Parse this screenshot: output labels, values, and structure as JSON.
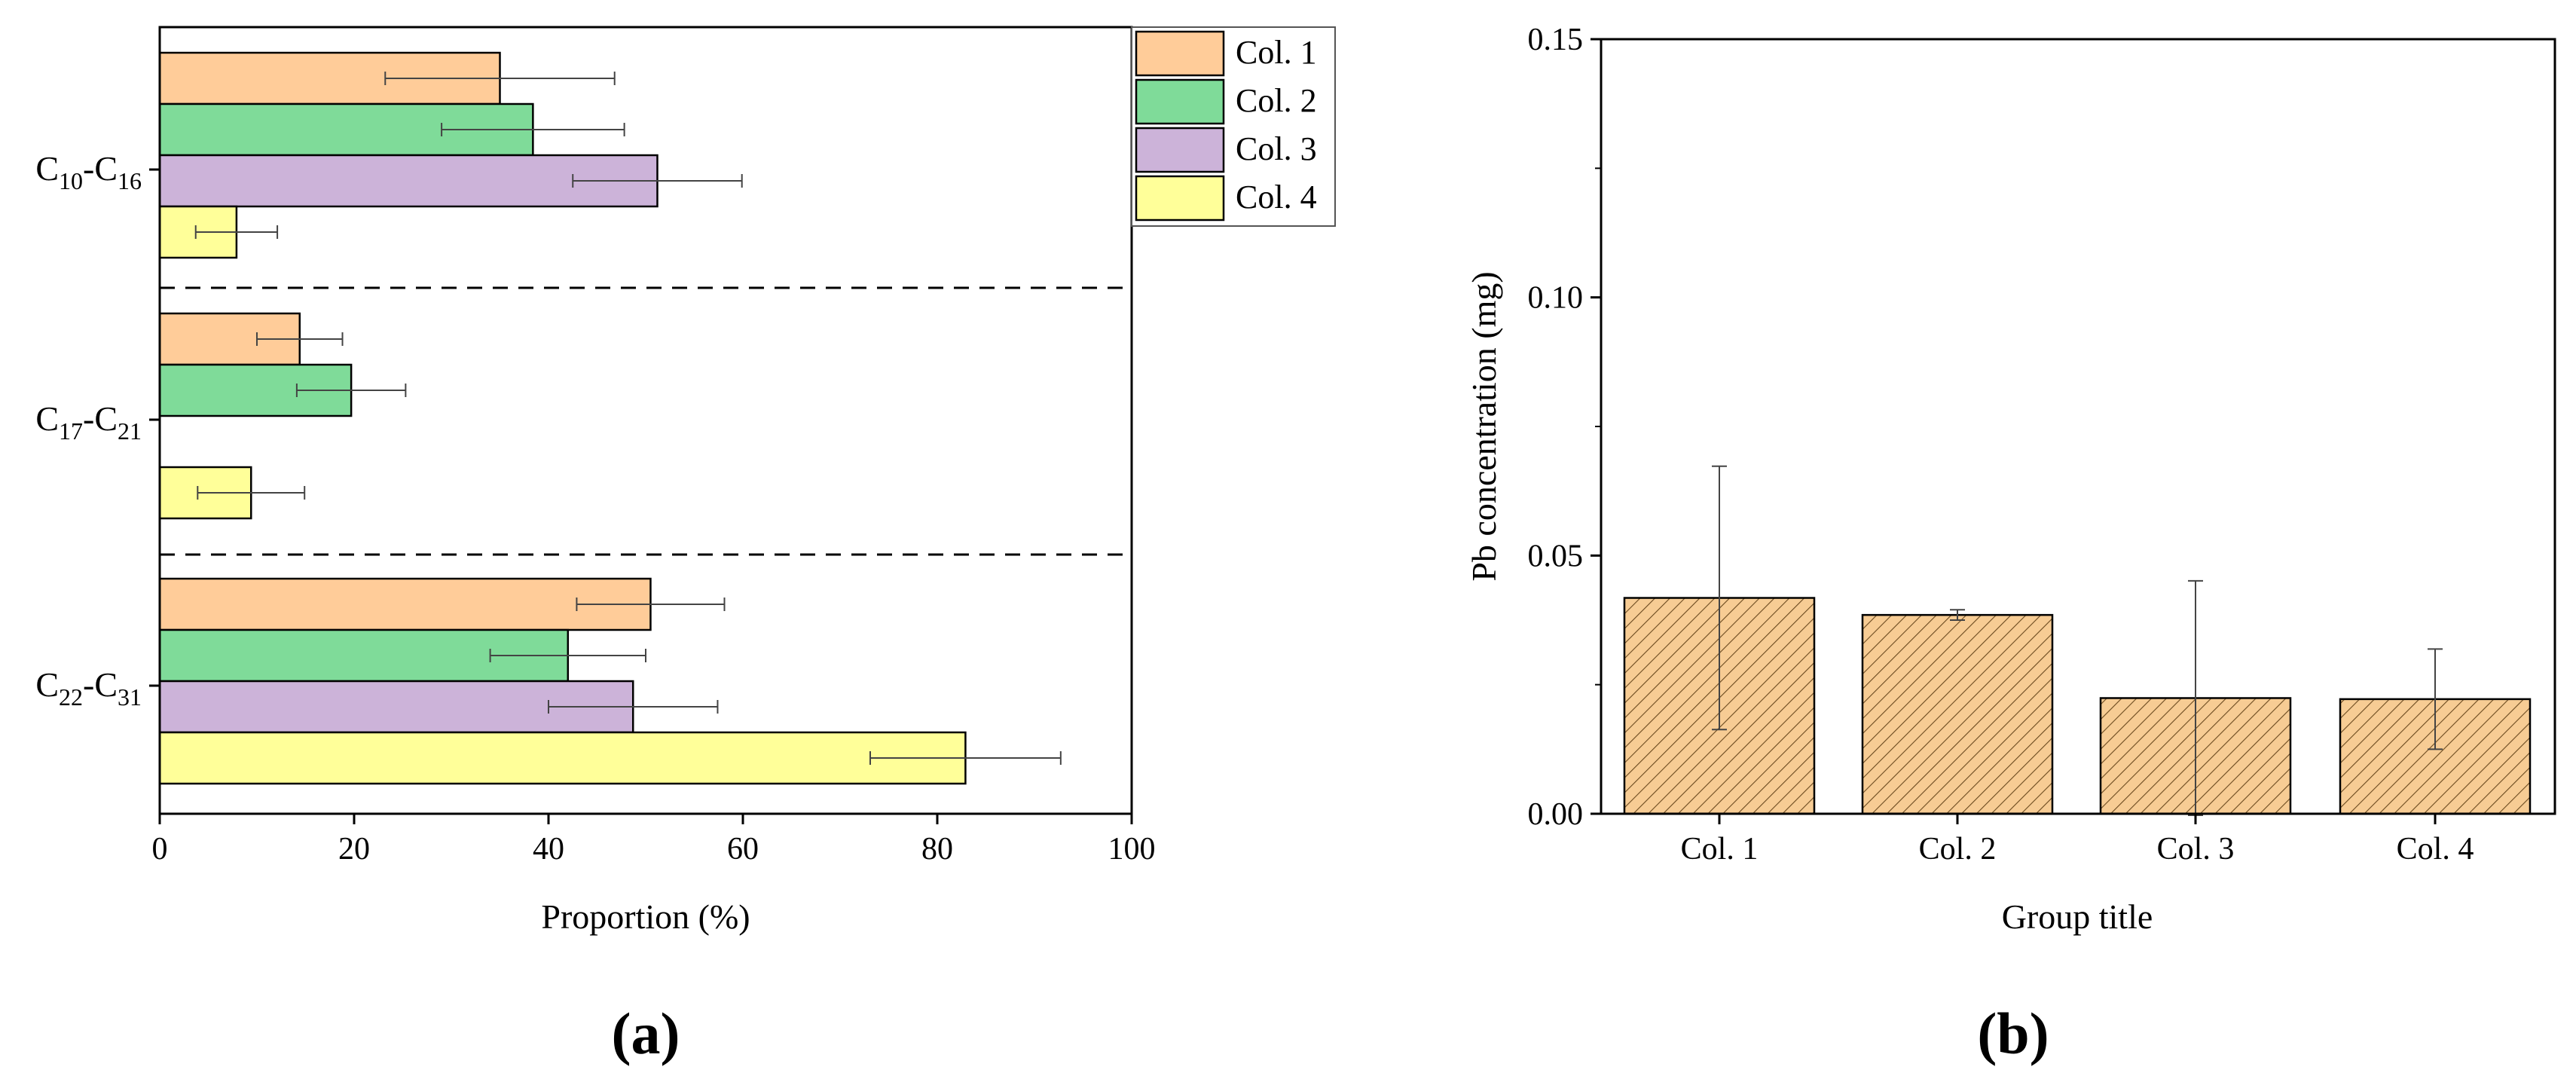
{
  "chart_data": [
    {
      "panel_label": "(a)",
      "type": "bar",
      "orientation": "horizontal",
      "categories": [
        {
          "base": "C",
          "sub1": "10",
          "mid": "-C",
          "sub2": "16"
        },
        {
          "base": "C",
          "sub1": "17",
          "mid": "-C",
          "sub2": "21"
        },
        {
          "base": "C",
          "sub1": "22",
          "mid": "-C",
          "sub2": "31"
        }
      ],
      "series": [
        {
          "name": "Col. 1",
          "color": "#FFCC99",
          "values": [
            35.0,
            14.4,
            50.5
          ],
          "errors": [
            11.8,
            4.4,
            7.6
          ]
        },
        {
          "name": "Col. 2",
          "color": "#7FDB99",
          "values": [
            38.4,
            19.7,
            42.0
          ],
          "errors": [
            9.4,
            5.6,
            8.0
          ]
        },
        {
          "name": "Col. 3",
          "color": "#CCB3D9",
          "values": [
            51.2,
            null,
            48.7
          ],
          "errors": [
            8.7,
            null,
            8.7
          ]
        },
        {
          "name": "Col. 4",
          "color": "#FFFF99",
          "values": [
            7.9,
            9.4,
            82.9
          ],
          "errors": [
            4.2,
            5.5,
            9.8
          ]
        }
      ],
      "xlabel": "Proportion (%)",
      "xlim": [
        0,
        100
      ],
      "xticks": [
        0,
        20,
        40,
        60,
        80,
        100
      ],
      "legend_position": "top-right"
    },
    {
      "panel_label": "(b)",
      "type": "bar",
      "orientation": "vertical",
      "categories": [
        "Col. 1",
        "Col. 2",
        "Col. 3",
        "Col. 4"
      ],
      "values": [
        0.0418,
        0.0385,
        0.0224,
        0.0222
      ],
      "errors": [
        0.0255,
        0.001,
        0.0227,
        0.0097
      ],
      "color": "#F7CC94",
      "hatch": "diagonal",
      "xlabel": "Group title",
      "ylabel": "Pb concentration (mg)",
      "ylim": [
        0,
        0.15
      ],
      "yticks": [
        "0.00",
        "0.05",
        "0.10",
        "0.15"
      ]
    }
  ]
}
